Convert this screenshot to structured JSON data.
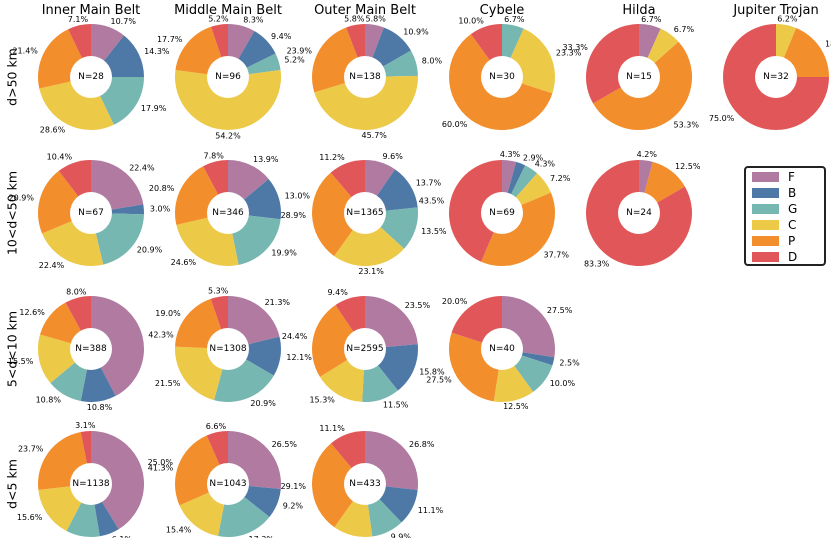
{
  "chart_data": {
    "type": "pie",
    "style": "donut",
    "columns": [
      "Inner Main Belt",
      "Middle Main Belt",
      "Outer Main Belt",
      "Cybele",
      "Hilda",
      "Jupiter Trojan"
    ],
    "rows": [
      "d>50 km",
      "10<d<50 km",
      "5<d<10 km",
      "d<5 km"
    ],
    "categories": [
      "F",
      "B",
      "G",
      "C",
      "P",
      "D"
    ],
    "colors": {
      "F": "#b07aa1",
      "B": "#4e79a7",
      "G": "#76b7b2",
      "C": "#edc948",
      "P": "#f28e2b",
      "D": "#e15759"
    },
    "legend_position": "right",
    "cells": [
      {
        "column": "Inner Main Belt",
        "row": "d>50 km",
        "n": "N=28",
        "values": {
          "F": 10.7,
          "B": 14.3,
          "G": 17.9,
          "C": 28.6,
          "P": 21.4,
          "D": 7.1
        },
        "labels": {
          "F": "10.7%",
          "B": "14.3%",
          "G": "17.9%",
          "C": "28.6%",
          "P": "21.4%",
          "D": "7.1%"
        }
      },
      {
        "column": "Middle Main Belt",
        "row": "d>50 km",
        "n": "N=96",
        "values": {
          "F": 8.3,
          "B": 9.4,
          "G": 5.2,
          "C": 54.2,
          "P": 17.7,
          "D": 5.2
        },
        "labels": {
          "F": "8.3%",
          "B": "9.4%",
          "G": "5.2%",
          "C": "54.2%",
          "P": "17.7%",
          "D": "5.2%"
        }
      },
      {
        "column": "Outer Main Belt",
        "row": "d>50 km",
        "n": "N=138",
        "values": {
          "F": 5.8,
          "B": 10.9,
          "G": 8.0,
          "C": 45.7,
          "P": 23.9,
          "D": 5.8
        },
        "labels": {
          "F": "5.8%",
          "B": "10.9%",
          "G": "8.0%",
          "C": "45.7%",
          "P": "23.9%",
          "D": "5.8%"
        }
      },
      {
        "column": "Cybele",
        "row": "d>50 km",
        "n": "N=30",
        "values": {
          "G": 6.7,
          "C": 23.3,
          "P": 60.0,
          "D": 10.0
        },
        "labels": {
          "G": "6.7%",
          "C": "23.3%",
          "P": "60.0%",
          "D": "10.0%"
        }
      },
      {
        "column": "Hilda",
        "row": "d>50 km",
        "n": "N=15",
        "values": {
          "F": 6.7,
          "C": 6.7,
          "P": 53.3,
          "D": 33.3
        },
        "labels": {
          "F": "6.7%",
          "C": "6.7%",
          "P": "53.3%",
          "D": "33.3%"
        }
      },
      {
        "column": "Jupiter Trojan",
        "row": "d>50 km",
        "n": "N=32",
        "values": {
          "C": 6.2,
          "P": 18.8,
          "D": 75.0
        },
        "labels": {
          "C": "6.2%",
          "P": "18.8%",
          "D": "75.0%"
        }
      },
      {
        "column": "Inner Main Belt",
        "row": "10<d<50 km",
        "n": "N=67",
        "values": {
          "F": 22.4,
          "B": 3.0,
          "G": 20.9,
          "C": 22.4,
          "P": 20.9,
          "D": 10.4
        },
        "labels": {
          "F": "22.4%",
          "B": "3.0%",
          "G": "20.9%",
          "C": "22.4%",
          "P": "20.9%",
          "D": "10.4%"
        }
      },
      {
        "column": "Middle Main Belt",
        "row": "10<d<50 km",
        "n": "N=346",
        "values": {
          "F": 13.9,
          "B": 13.0,
          "G": 19.9,
          "C": 24.6,
          "P": 20.8,
          "D": 7.8
        },
        "labels": {
          "F": "13.9%",
          "B": "13.0%",
          "G": "19.9%",
          "C": "24.6%",
          "P": "20.8%",
          "D": "7.8%"
        }
      },
      {
        "column": "Outer Main Belt",
        "row": "10<d<50 km",
        "n": "N=1365",
        "values": {
          "F": 9.6,
          "B": 13.7,
          "G": 13.5,
          "C": 23.1,
          "P": 28.9,
          "D": 11.2
        },
        "labels": {
          "F": "9.6%",
          "B": "13.7%",
          "G": "13.5%",
          "C": "23.1%",
          "P": "28.9%",
          "D": "11.2%"
        }
      },
      {
        "column": "Cybele",
        "row": "10<d<50 km",
        "n": "N=69",
        "values": {
          "F": 4.3,
          "B": 2.9,
          "G": 4.3,
          "C": 7.2,
          "P": 37.7,
          "D": 43.5
        },
        "labels": {
          "F": "4.3%",
          "B": "2.9%",
          "G": "4.3%",
          "C": "7.2%",
          "P": "37.7%",
          "D": "43.5%"
        }
      },
      {
        "column": "Hilda",
        "row": "10<d<50 km",
        "n": "N=24",
        "values": {
          "F": 4.2,
          "P": 12.5,
          "D": 83.3
        },
        "labels": {
          "F": "4.2%",
          "P": "12.5%",
          "D": "83.3%"
        }
      },
      {
        "column": "Inner Main Belt",
        "row": "5<d<10 km",
        "n": "N=388",
        "values": {
          "F": 42.3,
          "B": 10.8,
          "G": 10.8,
          "C": 15.5,
          "P": 12.6,
          "D": 8.0
        },
        "labels": {
          "F": "42.3%",
          "B": "10.8%",
          "G": "10.8%",
          "C": "15.5%",
          "P": "12.6%",
          "D": "8.0%"
        }
      },
      {
        "column": "Middle Main Belt",
        "row": "5<d<10 km",
        "n": "N=1308",
        "values": {
          "F": 21.3,
          "B": 12.1,
          "G": 20.9,
          "C": 21.5,
          "P": 19.0,
          "D": 5.3
        },
        "labels": {
          "F": "21.3%",
          "B": "12.1%",
          "G": "20.9%",
          "C": "21.5%",
          "P": "19.0%",
          "D": "5.3%"
        }
      },
      {
        "column": "Outer Main Belt",
        "row": "5<d<10 km",
        "n": "N=2595",
        "values": {
          "F": 23.5,
          "B": 15.8,
          "G": 11.5,
          "C": 15.3,
          "P": 24.4,
          "D": 9.4
        },
        "labels": {
          "F": "23.5%",
          "B": "15.8%",
          "G": "11.5%",
          "C": "15.3%",
          "P": "24.4%",
          "D": "9.4%"
        }
      },
      {
        "column": "Cybele",
        "row": "5<d<10 km",
        "n": "N=40",
        "values": {
          "F": 27.5,
          "B": 2.5,
          "G": 10.0,
          "C": 12.5,
          "P": 27.5,
          "D": 20.0
        },
        "labels": {
          "F": "27.5%",
          "B": "2.5%",
          "G": "10.0%",
          "C": "12.5%",
          "P": "27.5%",
          "D": "20.0%"
        }
      },
      {
        "column": "Inner Main Belt",
        "row": "d<5 km",
        "n": "N=1138",
        "values": {
          "F": 41.3,
          "B": 6.1,
          "G": 10.3,
          "C": 15.6,
          "P": 23.7,
          "D": 3.1
        },
        "labels": {
          "F": "41.3%",
          "B": "6.1%",
          "G": "10.3%",
          "C": "15.6%",
          "P": "23.7%",
          "D": "3.1%"
        }
      },
      {
        "column": "Middle Main Belt",
        "row": "d<5 km",
        "n": "N=1043",
        "values": {
          "F": 26.5,
          "B": 9.2,
          "G": 17.3,
          "C": 15.4,
          "P": 25.0,
          "D": 6.6
        },
        "labels": {
          "F": "26.5%",
          "B": "9.2%",
          "G": "17.3%",
          "C": "15.4%",
          "P": "25.0%",
          "D": "6.6%"
        }
      },
      {
        "column": "Outer Main Belt",
        "row": "d<5 km",
        "n": "N=433",
        "values": {
          "F": 26.8,
          "B": 11.1,
          "G": 9.9,
          "C": 12.0,
          "P": 29.1,
          "D": 11.1
        },
        "labels": {
          "F": "26.8%",
          "B": "11.1%",
          "G": "9.9%",
          "C": "12.0%",
          "P": "29.1%",
          "D": "11.1%"
        }
      }
    ]
  }
}
